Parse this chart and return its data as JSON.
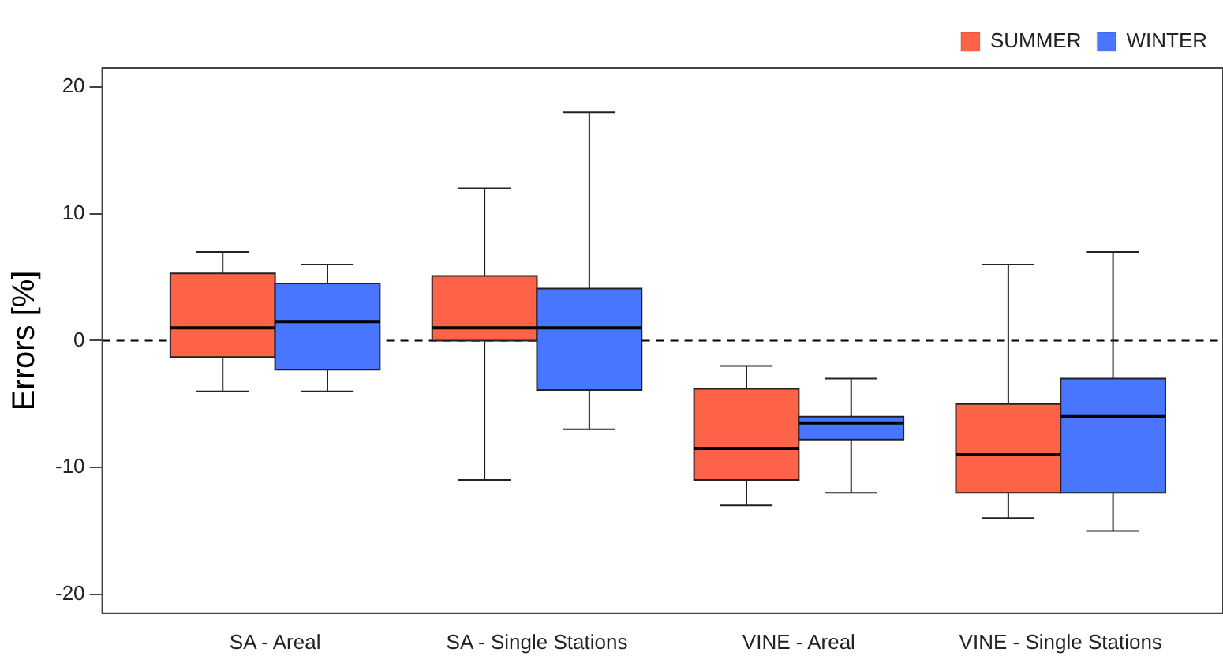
{
  "chart_data": {
    "type": "box",
    "ylabel": "Errors [%]",
    "categories": [
      "SA - Areal",
      "SA - Single Stations",
      "VINE - Areal",
      "VINE - Single Stations"
    ],
    "series": [
      {
        "name": "SUMMER",
        "color": "#ff6347",
        "boxes": [
          {
            "low": -4,
            "q1": -1.3,
            "median": 1,
            "q3": 5.3,
            "high": 7
          },
          {
            "low": -11,
            "q1": 0,
            "median": 1,
            "q3": 5.1,
            "high": 12
          },
          {
            "low": -13,
            "q1": -11,
            "median": -8.5,
            "q3": -3.8,
            "high": -2
          },
          {
            "low": -14,
            "q1": -12,
            "median": -9,
            "q3": -5,
            "high": 6
          }
        ]
      },
      {
        "name": "WINTER",
        "color": "#4876ff",
        "boxes": [
          {
            "low": -4,
            "q1": -2.3,
            "median": 1.5,
            "q3": 4.5,
            "high": 6
          },
          {
            "low": -7,
            "q1": -3.9,
            "median": 1,
            "q3": 4.1,
            "high": 18
          },
          {
            "low": -12,
            "q1": -7.8,
            "median": -6.5,
            "q3": -6,
            "high": -3
          },
          {
            "low": -15,
            "q1": -12,
            "median": -6,
            "q3": -3,
            "high": 7
          }
        ]
      }
    ],
    "ylim": [
      -21.5,
      21.5
    ],
    "yticks": [
      -20,
      -10,
      0,
      10,
      20
    ],
    "ref_lines": [
      {
        "axis": "y",
        "value": 0,
        "line_style": "dashed"
      }
    ],
    "legend": "top right",
    "grid": false
  }
}
